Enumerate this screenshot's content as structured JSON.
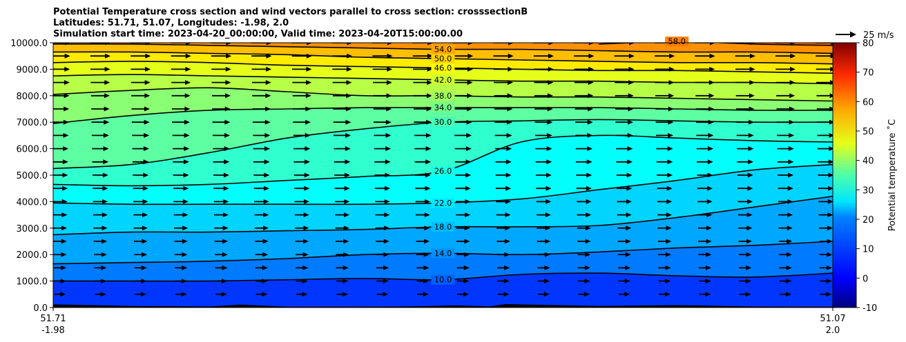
{
  "title_lines": [
    "Potential Temperature cross section and wind vectors parallel to cross section: crosssectionB",
    "Latitudes: 51.71, 51.07, Longitudes: -1.98, 2.0",
    "Simulation start time: 2023-04-20_00:00:00, Valid time: 2023-04-20T15:00:00.00"
  ],
  "quiver_key_label": "25 m/s",
  "colorbar": {
    "label": "Potential temperature ˚C",
    "min": -10,
    "max": 80,
    "ticks": [
      "80",
      "70",
      "60",
      "50",
      "40",
      "30",
      "20",
      "10",
      "0",
      "-10"
    ]
  },
  "x_ticks": [
    {
      "lat": "51.71",
      "lon": "-1.98"
    },
    {
      "lat": "51.07",
      "lon": "2.0"
    }
  ],
  "chart_data": {
    "type": "contour",
    "title": "Potential Temperature cross section and wind vectors parallel to cross section: crosssectionB",
    "xlabel": "",
    "ylabel": "",
    "xlim": [
      0,
      1
    ],
    "ylim": [
      0,
      10000
    ],
    "y_ticks": [
      "0.0",
      "1000.0",
      "2000.0",
      "3000.0",
      "4000.0",
      "5000.0",
      "6000.0",
      "7000.0",
      "8000.0",
      "9000.0",
      "10000.0"
    ],
    "contour_levels": [
      {
        "level": 10,
        "label": "10.0",
        "y": [
          1000,
          1000,
          1000,
          1050,
          1100,
          1050,
          1250,
          1300,
          1200,
          1150,
          1300
        ]
      },
      {
        "level": 14,
        "label": "14.0",
        "y": [
          1650,
          1700,
          1750,
          1850,
          2000,
          2050,
          2000,
          2100,
          2250,
          2350,
          2500
        ]
      },
      {
        "level": 18,
        "label": "18.0",
        "y": [
          2750,
          2850,
          2850,
          2900,
          2950,
          3050,
          3050,
          3100,
          3400,
          3800,
          4200
        ]
      },
      {
        "level": 22,
        "label": "22.0",
        "y": [
          3950,
          3900,
          3900,
          3900,
          3900,
          3950,
          4100,
          4450,
          4800,
          5200,
          5400
        ]
      },
      {
        "level": 26,
        "label": "26.0",
        "y": [
          4650,
          4600,
          4650,
          4800,
          4950,
          5150,
          6250,
          6500,
          6400,
          6300,
          6250
        ]
      },
      {
        "level": 30,
        "label": "30.0",
        "y": [
          5250,
          5400,
          5850,
          6400,
          6750,
          7000,
          7050,
          7100,
          7050,
          7000,
          7000
        ]
      },
      {
        "level": 34,
        "label": "34.0",
        "y": [
          6950,
          7250,
          7450,
          7500,
          7550,
          7550,
          7550,
          7550,
          7500,
          7450,
          7450
        ]
      },
      {
        "level": 38,
        "label": "38.0",
        "y": [
          8050,
          8200,
          8300,
          8150,
          8000,
          8000,
          7950,
          7950,
          7900,
          7850,
          7800
        ]
      },
      {
        "level": 42,
        "label": "42.0",
        "y": [
          8750,
          8800,
          8750,
          8700,
          8650,
          8600,
          8550,
          8550,
          8500,
          8500,
          8450
        ]
      },
      {
        "level": 46,
        "label": "46.0",
        "y": [
          9250,
          9300,
          9250,
          9150,
          9100,
          9050,
          9000,
          8950,
          8950,
          8900,
          8850
        ]
      },
      {
        "level": 50,
        "label": "50.0",
        "y": [
          9650,
          9650,
          9600,
          9550,
          9450,
          9400,
          9350,
          9300,
          9250,
          9250,
          9200
        ]
      },
      {
        "level": 54,
        "label": "54.0",
        "y": [
          9950,
          9950,
          9900,
          9850,
          9800,
          9750,
          9750,
          9700,
          9650,
          9650,
          9600
        ]
      },
      {
        "level": 58,
        "label": "58.0",
        "y": [
          null,
          null,
          null,
          null,
          null,
          null,
          null,
          9950,
          10050,
          9950,
          9900
        ]
      }
    ],
    "wind_vectors": {
      "direction": "parallel to cross section, positive (left to right)",
      "reference_speed_ms": 25
    },
    "terrain": "low orography along the bottom boundary"
  }
}
